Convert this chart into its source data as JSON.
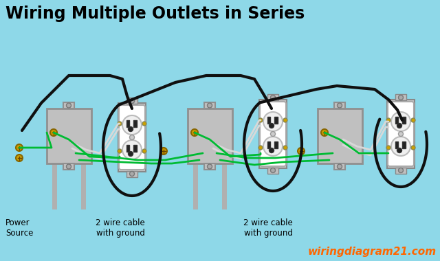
{
  "title": "Wiring Multiple Outlets in Series",
  "title_fontsize": 17,
  "title_color": "#000000",
  "background_color": "#8ED8E8",
  "watermark": "wiringdiagram21.com",
  "watermark_color": "#FF6600",
  "watermark_fontsize": 11,
  "label_power": "Power\nSource",
  "label_cable1": "2 wire cable\nwith ground",
  "label_cable2": "2 wire cable\nwith ground",
  "box_color": "#909090",
  "box_fill": "#C0C0C0",
  "outlet_color": "#FFFFFF",
  "wire_black": "#101010",
  "wire_white": "#D8D8D8",
  "wire_green": "#00BB33",
  "screw_gold": "#CCA000",
  "conduit_color": "#B0B0B0"
}
